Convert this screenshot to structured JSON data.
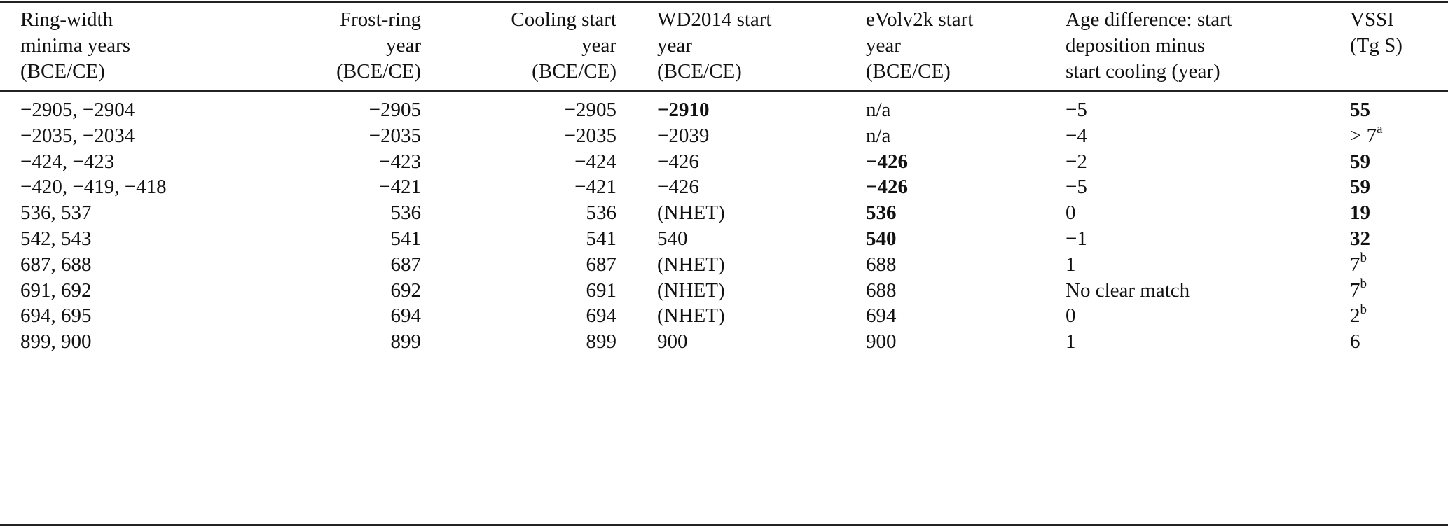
{
  "table": {
    "headers": [
      [
        "Ring-width",
        "minima years",
        "(BCE/CE)"
      ],
      [
        "Frost-ring",
        "year",
        "(BCE/CE)"
      ],
      [
        "Cooling start",
        "year",
        "(BCE/CE)"
      ],
      [
        "WD2014 start",
        "year",
        "(BCE/CE)"
      ],
      [
        "eVolv2k start",
        "year",
        "(BCE/CE)"
      ],
      [
        "Age difference: start",
        "deposition minus",
        "start cooling (year)"
      ],
      [
        "VSSI",
        "(Tg S)",
        ""
      ]
    ],
    "rows": [
      {
        "cells": [
          "−2905, −2904",
          "−2905",
          "−2905",
          "−2910",
          "n/a",
          "−5",
          "55"
        ],
        "bold": [
          3,
          6
        ],
        "sup": ""
      },
      {
        "cells": [
          "−2035, −2034",
          "−2035",
          "−2035",
          "−2039",
          "n/a",
          "−4",
          "> 7"
        ],
        "bold": [],
        "sup": "a"
      },
      {
        "cells": [
          "−424, −423",
          "−423",
          "−424",
          "−426",
          "−426",
          "−2",
          "59"
        ],
        "bold": [
          4,
          6
        ],
        "sup": ""
      },
      {
        "cells": [
          "−420, −419, −418",
          "−421",
          "−421",
          "−426",
          "−426",
          "−5",
          "59"
        ],
        "bold": [
          4,
          6
        ],
        "sup": ""
      },
      {
        "cells": [
          "536, 537",
          "536",
          "536",
          "(NHET)",
          "536",
          "0",
          "19"
        ],
        "bold": [
          4,
          6
        ],
        "sup": ""
      },
      {
        "cells": [
          "542, 543",
          "541",
          "541",
          "540",
          "540",
          "−1",
          "32"
        ],
        "bold": [
          4,
          6
        ],
        "sup": ""
      },
      {
        "cells": [
          "687, 688",
          "687",
          "687",
          "(NHET)",
          "688",
          "1",
          "7"
        ],
        "bold": [],
        "sup": "b"
      },
      {
        "cells": [
          "691, 692",
          "692",
          "691",
          "(NHET)",
          "688",
          "No clear match",
          "7"
        ],
        "bold": [],
        "sup": "b"
      },
      {
        "cells": [
          "694, 695",
          "694",
          "694",
          "(NHET)",
          "694",
          "0",
          "2"
        ],
        "bold": [],
        "sup": "b"
      },
      {
        "cells": [
          "899, 900",
          "899",
          "899",
          "900",
          "900",
          "1",
          "6"
        ],
        "bold": [],
        "sup": ""
      }
    ]
  }
}
